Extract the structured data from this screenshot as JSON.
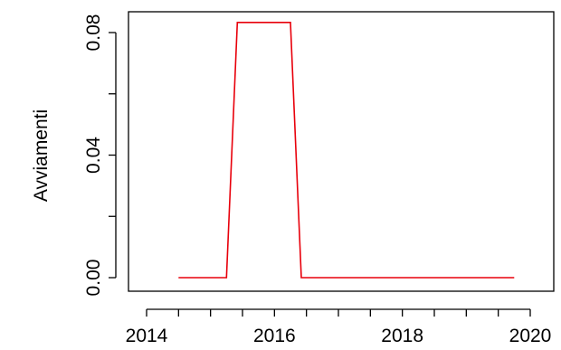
{
  "chart_data": {
    "type": "line",
    "title": "",
    "xlabel": "",
    "ylabel": "Avviamenti",
    "xlim": [
      2014.0,
      2020.0
    ],
    "ylim": [
      0.0,
      0.08
    ],
    "x_ticks": [
      2014,
      2016,
      2018,
      2020
    ],
    "x_tick_labels": [
      "2014",
      "2016",
      "2018",
      "2020"
    ],
    "x_minor_ticks": [
      2014.5,
      2015,
      2015.5,
      2016.5,
      2017,
      2017.5,
      2018.5,
      2019,
      2019.5
    ],
    "y_ticks": [
      0.0,
      0.04,
      0.08
    ],
    "y_tick_labels": [
      "0.00",
      "0.04",
      "0.08"
    ],
    "y_minor_ticks": [
      0.02,
      0.06
    ],
    "grid": false,
    "legend": "none",
    "series": [
      {
        "color": "#e8000b",
        "x": [
          2014.5,
          2015.25,
          2015.42,
          2016.25,
          2016.42,
          2019.75
        ],
        "y": [
          0.0,
          0.0,
          0.0833,
          0.0833,
          0.0,
          0.0
        ]
      }
    ]
  }
}
